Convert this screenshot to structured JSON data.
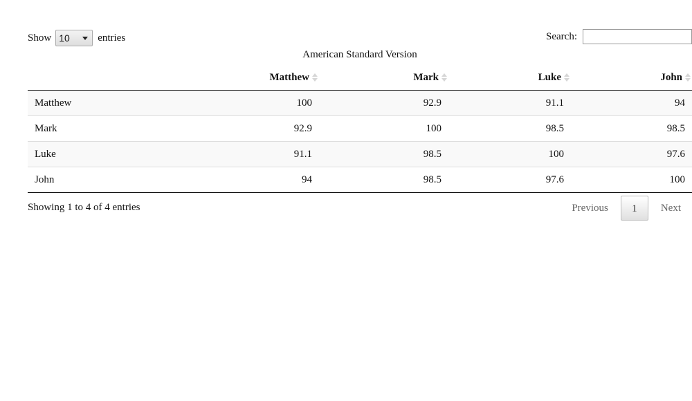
{
  "length_menu": {
    "show_label": "Show",
    "selected_value": "10",
    "entries_label": "entries"
  },
  "search": {
    "label": "Search:",
    "value": "",
    "placeholder": ""
  },
  "table": {
    "caption": "American Standard Version",
    "row_header_label": "",
    "columns": [
      "Matthew",
      "Mark",
      "Luke",
      "John"
    ],
    "rows": [
      {
        "label": "Matthew",
        "values": [
          "100",
          "92.9",
          "91.1",
          "94"
        ]
      },
      {
        "label": "Mark",
        "values": [
          "92.9",
          "100",
          "98.5",
          "98.5"
        ]
      },
      {
        "label": "Luke",
        "values": [
          "91.1",
          "98.5",
          "100",
          "97.6"
        ]
      },
      {
        "label": "John",
        "values": [
          "94",
          "98.5",
          "97.6",
          "100"
        ]
      }
    ]
  },
  "info_text": "Showing 1 to 4 of 4 entries",
  "pagination": {
    "previous_label": "Previous",
    "current_page": "1",
    "next_label": "Next"
  },
  "colors": {
    "striped_row": "#f9f9f9",
    "sort_icon": "#d6d6d6",
    "disabled_pager_text": "#666666"
  },
  "icons": {
    "sort": "sort-both-icon",
    "dropdown": "chevron-down-icon"
  }
}
